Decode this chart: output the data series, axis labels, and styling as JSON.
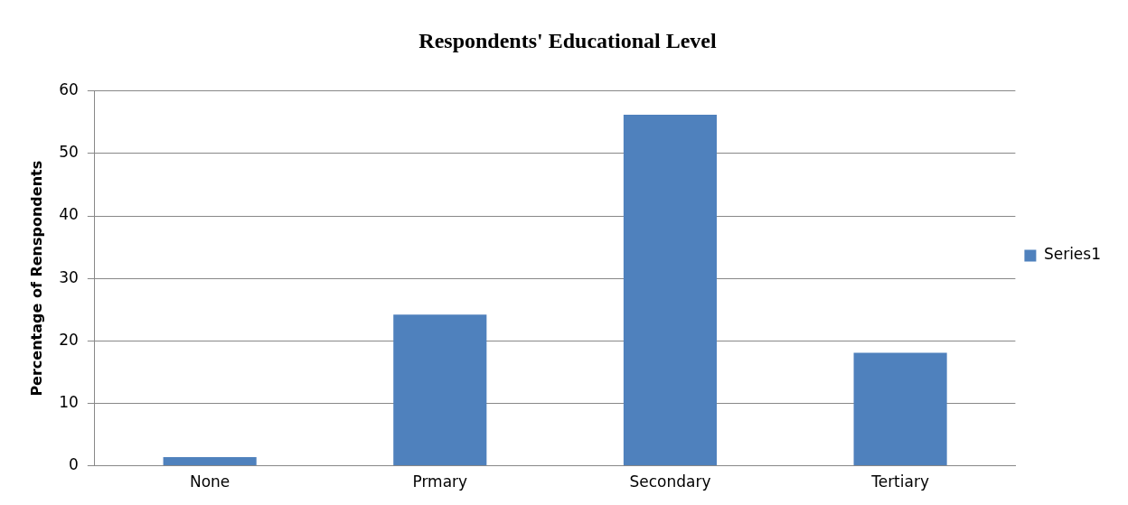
{
  "chart_data": {
    "type": "bar",
    "title": "Respondents' Educational Level",
    "ylabel": "Percentage of Renspondents",
    "categories": [
      "None",
      "Prmary",
      "Secondary",
      "Tertiary"
    ],
    "series": [
      {
        "name": "Series1",
        "color": "#4f81bd",
        "values": [
          1.4,
          24.2,
          56.2,
          18.1
        ]
      }
    ],
    "ylim": [
      0,
      60
    ],
    "yticks": [
      0,
      10,
      20,
      30,
      40,
      50,
      60
    ],
    "grid": "y",
    "legend": "right"
  }
}
